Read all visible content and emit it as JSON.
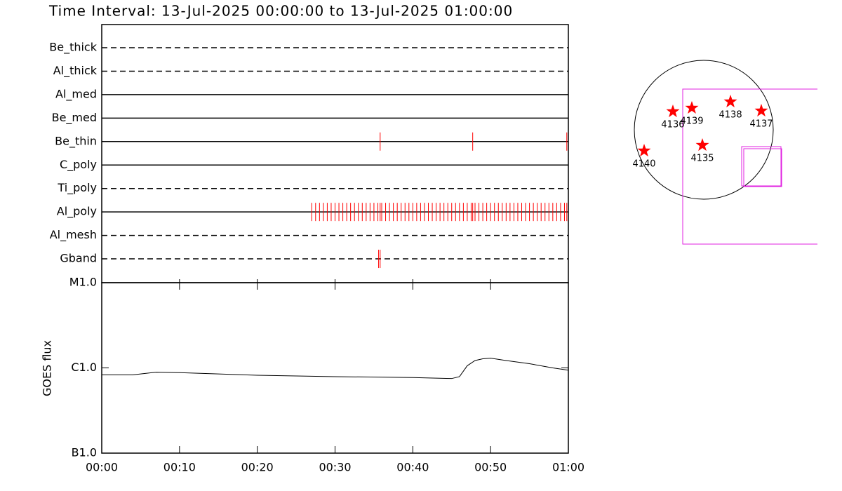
{
  "chart_data": [
    {
      "type": "timeline",
      "title": "Time Interval: 13-Jul-2025 00:00:00 to 13-Jul-2025 01:00:00",
      "color": "#ff0000",
      "xlim": [
        0,
        60
      ],
      "rows": [
        {
          "name": "Be_thick",
          "line_style": "dashed",
          "events": []
        },
        {
          "name": "Al_thick",
          "line_style": "dashed",
          "events": []
        },
        {
          "name": "Al_med",
          "line_style": "solid",
          "events": []
        },
        {
          "name": "Be_med",
          "line_style": "solid",
          "events": []
        },
        {
          "name": "Be_thin",
          "line_style": "solid",
          "events": [
            35.8,
            47.7,
            59.8
          ]
        },
        {
          "name": "C_poly",
          "line_style": "solid",
          "events": []
        },
        {
          "name": "Ti_poly",
          "line_style": "dashed",
          "events": []
        },
        {
          "name": "Al_poly",
          "line_style": "solid",
          "events": [
            27.0,
            27.5,
            28.0,
            28.5,
            29.0,
            29.5,
            30.0,
            30.5,
            31.0,
            31.5,
            32.0,
            32.5,
            33.0,
            33.5,
            34.0,
            34.5,
            35.0,
            35.5,
            35.8,
            36.0,
            36.5,
            37.0,
            37.5,
            38.0,
            38.5,
            39.0,
            39.5,
            40.0,
            40.5,
            41.0,
            41.5,
            42.0,
            42.5,
            43.0,
            43.5,
            44.0,
            44.5,
            45.0,
            45.5,
            46.0,
            46.5,
            47.0,
            47.5,
            47.7,
            48.0,
            48.5,
            49.0,
            49.5,
            50.0,
            50.5,
            51.0,
            51.5,
            52.0,
            52.5,
            53.0,
            53.5,
            54.0,
            54.5,
            55.0,
            55.5,
            56.0,
            56.5,
            57.0,
            57.5,
            58.0,
            58.5,
            59.0,
            59.5,
            59.8
          ]
        },
        {
          "name": "Al_mesh",
          "line_style": "dashed",
          "events": []
        },
        {
          "name": "Gband",
          "line_style": "dashed",
          "events": [
            35.6,
            35.8
          ]
        }
      ]
    },
    {
      "type": "line",
      "ylabel": "GOES flux",
      "log_y": true,
      "color": "#000000",
      "x": [
        0,
        4,
        7,
        10,
        20,
        30,
        40,
        45,
        46,
        47,
        48,
        49,
        50,
        52,
        55,
        58,
        60
      ],
      "values": [
        8.3e-07,
        8.3e-07,
        8.9e-07,
        8.8e-07,
        8.2e-07,
        7.9e-07,
        7.7e-07,
        7.5e-07,
        7.9e-07,
        1.06e-06,
        1.22e-06,
        1.28e-06,
        1.3e-06,
        1.22e-06,
        1.12e-06,
        1e-06,
        9.4e-07
      ],
      "xlim": [
        0,
        60
      ],
      "xticks": [
        {
          "value": 0,
          "label": "00:00"
        },
        {
          "value": 10,
          "label": "00:10"
        },
        {
          "value": 20,
          "label": "00:20"
        },
        {
          "value": 30,
          "label": "00:30"
        },
        {
          "value": 40,
          "label": "00:40"
        },
        {
          "value": 50,
          "label": "00:50"
        },
        {
          "value": 60,
          "label": "01:00"
        }
      ],
      "ylim": [
        1e-07,
        1e-05
      ],
      "yticks": [
        {
          "value": 1e-07,
          "label": "B1.0"
        },
        {
          "value": 1e-06,
          "label": "C1.0"
        },
        {
          "value": 1e-05,
          "label": "M1.0"
        }
      ]
    },
    {
      "type": "scatter",
      "color": "#ff0000",
      "x": [
        -427,
        -165,
        369,
        795,
        -19,
        -824
      ],
      "y": [
        252,
        301,
        388,
        262,
        -213,
        -291
      ],
      "labels": [
        "4136",
        "4139",
        "4138",
        "4137",
        "4135",
        "4140"
      ],
      "xlim": [
        -960,
        960
      ],
      "ylim": [
        -960,
        960
      ]
    }
  ]
}
